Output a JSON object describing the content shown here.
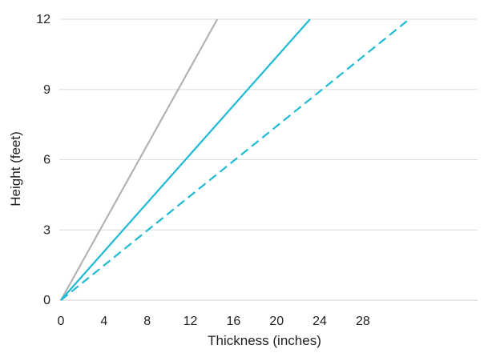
{
  "chart_data": {
    "type": "line",
    "title": "",
    "xlabel": "Thickness (inches)",
    "ylabel": "Height (feet)",
    "xlim": [
      0,
      38
    ],
    "ylim": [
      0,
      12
    ],
    "x_ticks": [
      0,
      4,
      8,
      12,
      16,
      20,
      24,
      28
    ],
    "y_ticks": [
      0,
      3,
      6,
      9,
      12
    ],
    "grid": "horizontal",
    "legend": "none",
    "series": [
      {
        "color": "#b3b3b3",
        "dash": "solid",
        "x": [
          0,
          14.5
        ],
        "y": [
          0,
          12
        ]
      },
      {
        "color": "#1fbad6",
        "dash": "solid",
        "x": [
          0,
          23.1
        ],
        "y": [
          0,
          12
        ]
      },
      {
        "color": "#1fbad6",
        "dash": "dashed",
        "x": [
          0,
          32.3
        ],
        "y": [
          0,
          12
        ]
      }
    ]
  }
}
